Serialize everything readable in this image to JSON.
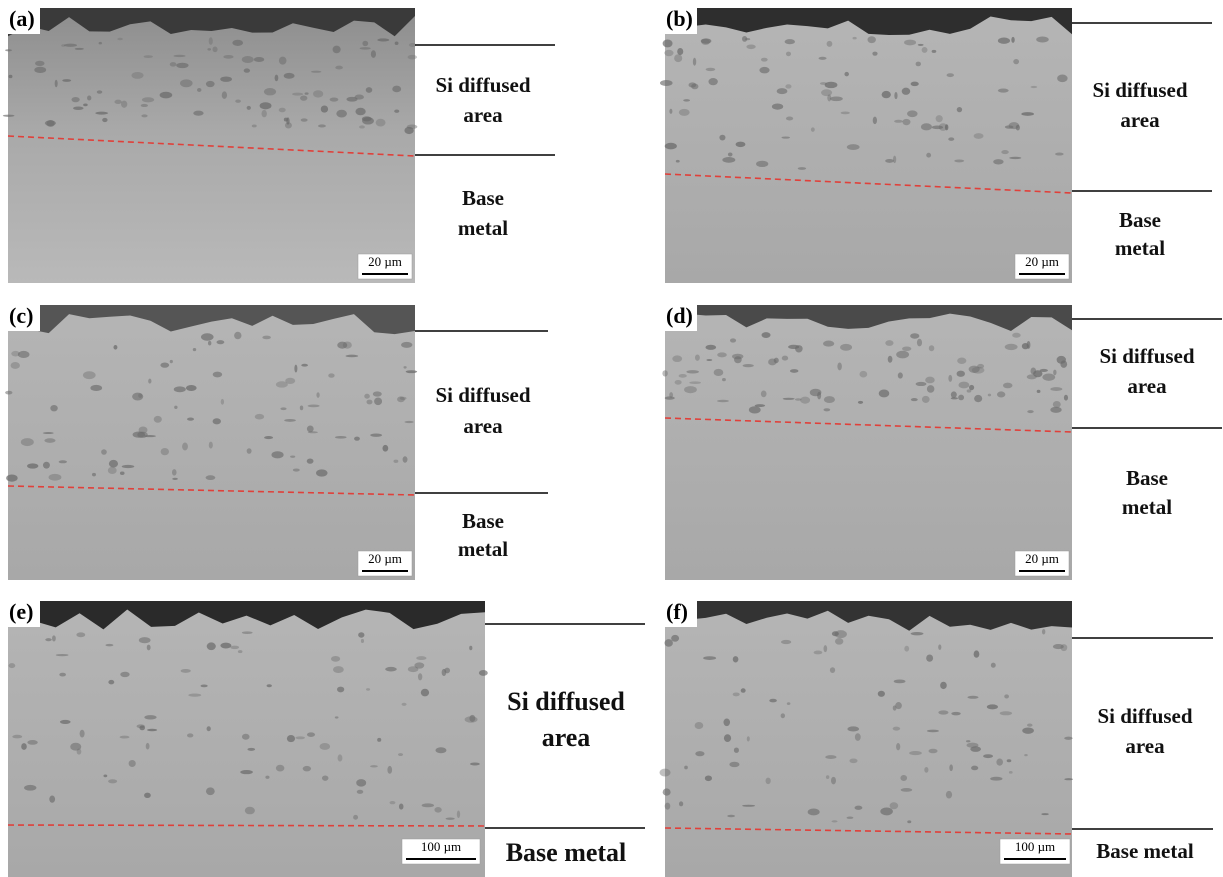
{
  "panels": [
    {
      "label": "(a)",
      "upper_region": [
        "Si diffused",
        "area"
      ],
      "lower_region": [
        "Base",
        "metal"
      ],
      "scale_bar": "20 µm"
    },
    {
      "label": "(b)",
      "upper_region": [
        "Si diffused",
        "area"
      ],
      "lower_region": [
        "Base",
        "metal"
      ],
      "scale_bar": "20 µm"
    },
    {
      "label": "(c)",
      "upper_region": [
        "Si diffused",
        "area"
      ],
      "lower_region": [
        "Base",
        "metal"
      ],
      "scale_bar": "20 µm"
    },
    {
      "label": "(d)",
      "upper_region": [
        "Si diffused",
        "area"
      ],
      "lower_region": [
        "Base",
        "metal"
      ],
      "scale_bar": "20 µm"
    },
    {
      "label": "(e)",
      "upper_region": [
        "Si diffused",
        "area"
      ],
      "lower_region": [
        "Base metal"
      ],
      "scale_bar": "100 µm"
    },
    {
      "label": "(f)",
      "upper_region": [
        "Si diffused",
        "area"
      ],
      "lower_region": [
        "Base metal"
      ],
      "scale_bar": "100 µm"
    }
  ]
}
